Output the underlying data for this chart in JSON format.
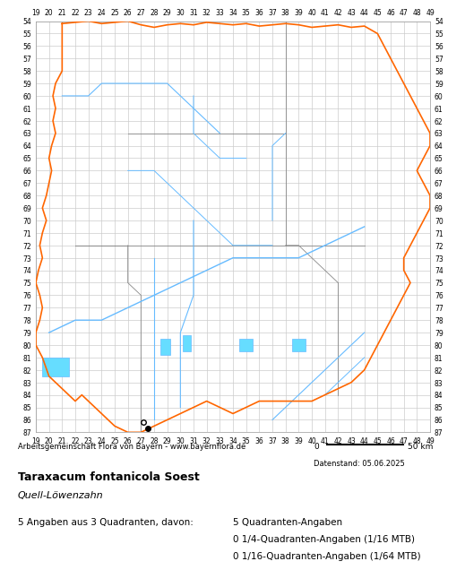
{
  "title": "Taraxacum fontanicola Soest",
  "subtitle": "Quell-Löwenzahn",
  "attribution": "Arbeitsgemeinschaft Flora von Bayern - www.bayernflora.de",
  "date_label": "Datenstand: 05.06.2025",
  "stats_line1": "5 Angaben aus 3 Quadranten, davon:",
  "stats_right1": "5 Quadranten-Angaben",
  "stats_right2": "0 1/4-Quadranten-Angaben (1/16 MTB)",
  "stats_right3": "0 1/16-Quadranten-Angaben (1/64 MTB)",
  "scale_label": "50 km",
  "x_min": 19,
  "x_max": 49,
  "y_min": 54,
  "y_max": 87,
  "grid_color": "#cccccc",
  "background_color": "#ffffff",
  "border_color": "#ff6600",
  "district_color": "#888888",
  "river_color": "#66bbff",
  "lake_color": "#66ddff",
  "occurrence_filled_color": "#000000",
  "occurrence_open_color": "#000000",
  "occurrences_filled": [
    [
      27.5,
      86.7
    ]
  ],
  "occurrences_open": [
    [
      27.2,
      86.2
    ]
  ]
}
